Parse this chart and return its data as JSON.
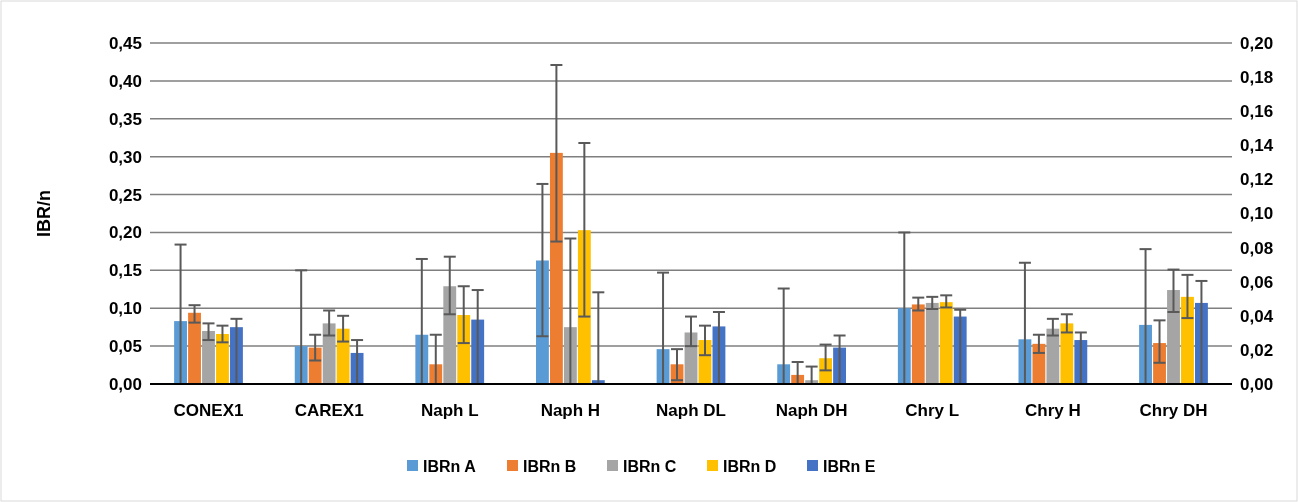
{
  "chart_data": {
    "type": "bar",
    "ylabel": "IBR/n",
    "categories": [
      "CONEX1",
      "CAREX1",
      "Naph L",
      "Naph H",
      "Naph DL",
      "Naph DH",
      "Chry L",
      "Chry H",
      "Chry DH"
    ],
    "series": [
      {
        "name": "IBRn A",
        "color": "#5b9bd5",
        "values": [
          0.083,
          0.05,
          0.065,
          0.163,
          0.046,
          0.026,
          0.1,
          0.059,
          0.078
        ],
        "errors": [
          [
            0,
            0.184
          ],
          [
            0,
            0.15
          ],
          [
            0,
            0.165
          ],
          [
            0.063,
            0.264
          ],
          [
            0,
            0.147
          ],
          [
            0,
            0.126
          ],
          [
            0,
            0.2
          ],
          [
            0,
            0.16
          ],
          [
            0,
            0.178
          ]
        ]
      },
      {
        "name": "IBRn B",
        "color": "#ed7d31",
        "values": [
          0.094,
          0.048,
          0.026,
          0.305,
          0.026,
          0.012,
          0.105,
          0.053,
          0.054
        ],
        "errors": [
          [
            0.081,
            0.104
          ],
          [
            0.031,
            0.065
          ],
          [
            0,
            0.065
          ],
          [
            0.188,
            0.421
          ],
          [
            0.005,
            0.046
          ],
          [
            0,
            0.029
          ],
          [
            0.097,
            0.114
          ],
          [
            0.041,
            0.065
          ],
          [
            0.028,
            0.084
          ]
        ]
      },
      {
        "name": "IBRn C",
        "color": "#a5a5a5",
        "values": [
          0.07,
          0.08,
          0.129,
          0.075,
          0.068,
          0.005,
          0.107,
          0.073,
          0.124
        ],
        "errors": [
          [
            0.058,
            0.08
          ],
          [
            0.064,
            0.097
          ],
          [
            0.092,
            0.168
          ],
          [
            0,
            0.192
          ],
          [
            0.05,
            0.089
          ],
          [
            0,
            0.023
          ],
          [
            0.099,
            0.115
          ],
          [
            0.064,
            0.086
          ],
          [
            0.095,
            0.151
          ]
        ]
      },
      {
        "name": "IBRn D",
        "color": "#ffc000",
        "values": [
          0.066,
          0.073,
          0.091,
          0.203,
          0.058,
          0.034,
          0.108,
          0.08,
          0.115
        ],
        "errors": [
          [
            0.055,
            0.077
          ],
          [
            0.056,
            0.09
          ],
          [
            0.054,
            0.129
          ],
          [
            0.089,
            0.318
          ],
          [
            0.038,
            0.077
          ],
          [
            0.018,
            0.052
          ],
          [
            0.101,
            0.117
          ],
          [
            0.068,
            0.092
          ],
          [
            0.087,
            0.144
          ]
        ]
      },
      {
        "name": "IBRn E",
        "color": "#4472c4",
        "values": [
          0.075,
          0.041,
          0.085,
          0.005,
          0.076,
          0.048,
          0.089,
          0.058,
          0.107
        ],
        "errors": [
          [
            0,
            0.086
          ],
          [
            0,
            0.058
          ],
          [
            0,
            0.124
          ],
          [
            0,
            0.121
          ],
          [
            0,
            0.095
          ],
          [
            0,
            0.064
          ],
          [
            0,
            0.098
          ],
          [
            0,
            0.068
          ],
          [
            0,
            0.136
          ]
        ]
      }
    ],
    "ylim": [
      0,
      0.45
    ],
    "yticks": [
      {
        "value": 0,
        "label": "0,00"
      },
      {
        "value": 0.05,
        "label": "0,05"
      },
      {
        "value": 0.1,
        "label": "0,10"
      },
      {
        "value": 0.15,
        "label": "0,15"
      },
      {
        "value": 0.2,
        "label": "0,20"
      },
      {
        "value": 0.25,
        "label": "0,25"
      },
      {
        "value": 0.3,
        "label": "0,30"
      },
      {
        "value": 0.35,
        "label": "0,35"
      },
      {
        "value": 0.4,
        "label": "0,40"
      },
      {
        "value": 0.45,
        "label": "0,45"
      }
    ],
    "y2lim": [
      0,
      0.2
    ],
    "y2ticks": [
      {
        "value": 0,
        "label": "0,00"
      },
      {
        "value": 0.02,
        "label": "0,02"
      },
      {
        "value": 0.04,
        "label": "0,04"
      },
      {
        "value": 0.06,
        "label": "0,06"
      },
      {
        "value": 0.08,
        "label": "0,08"
      },
      {
        "value": 0.1,
        "label": "0,10"
      },
      {
        "value": 0.12,
        "label": "0,12"
      },
      {
        "value": 0.14,
        "label": "0,14"
      },
      {
        "value": 0.16,
        "label": "0,16"
      },
      {
        "value": 0.18,
        "label": "0,18"
      },
      {
        "value": 0.2,
        "label": "0,20"
      }
    ],
    "grid": "y",
    "legend": "bottom"
  }
}
